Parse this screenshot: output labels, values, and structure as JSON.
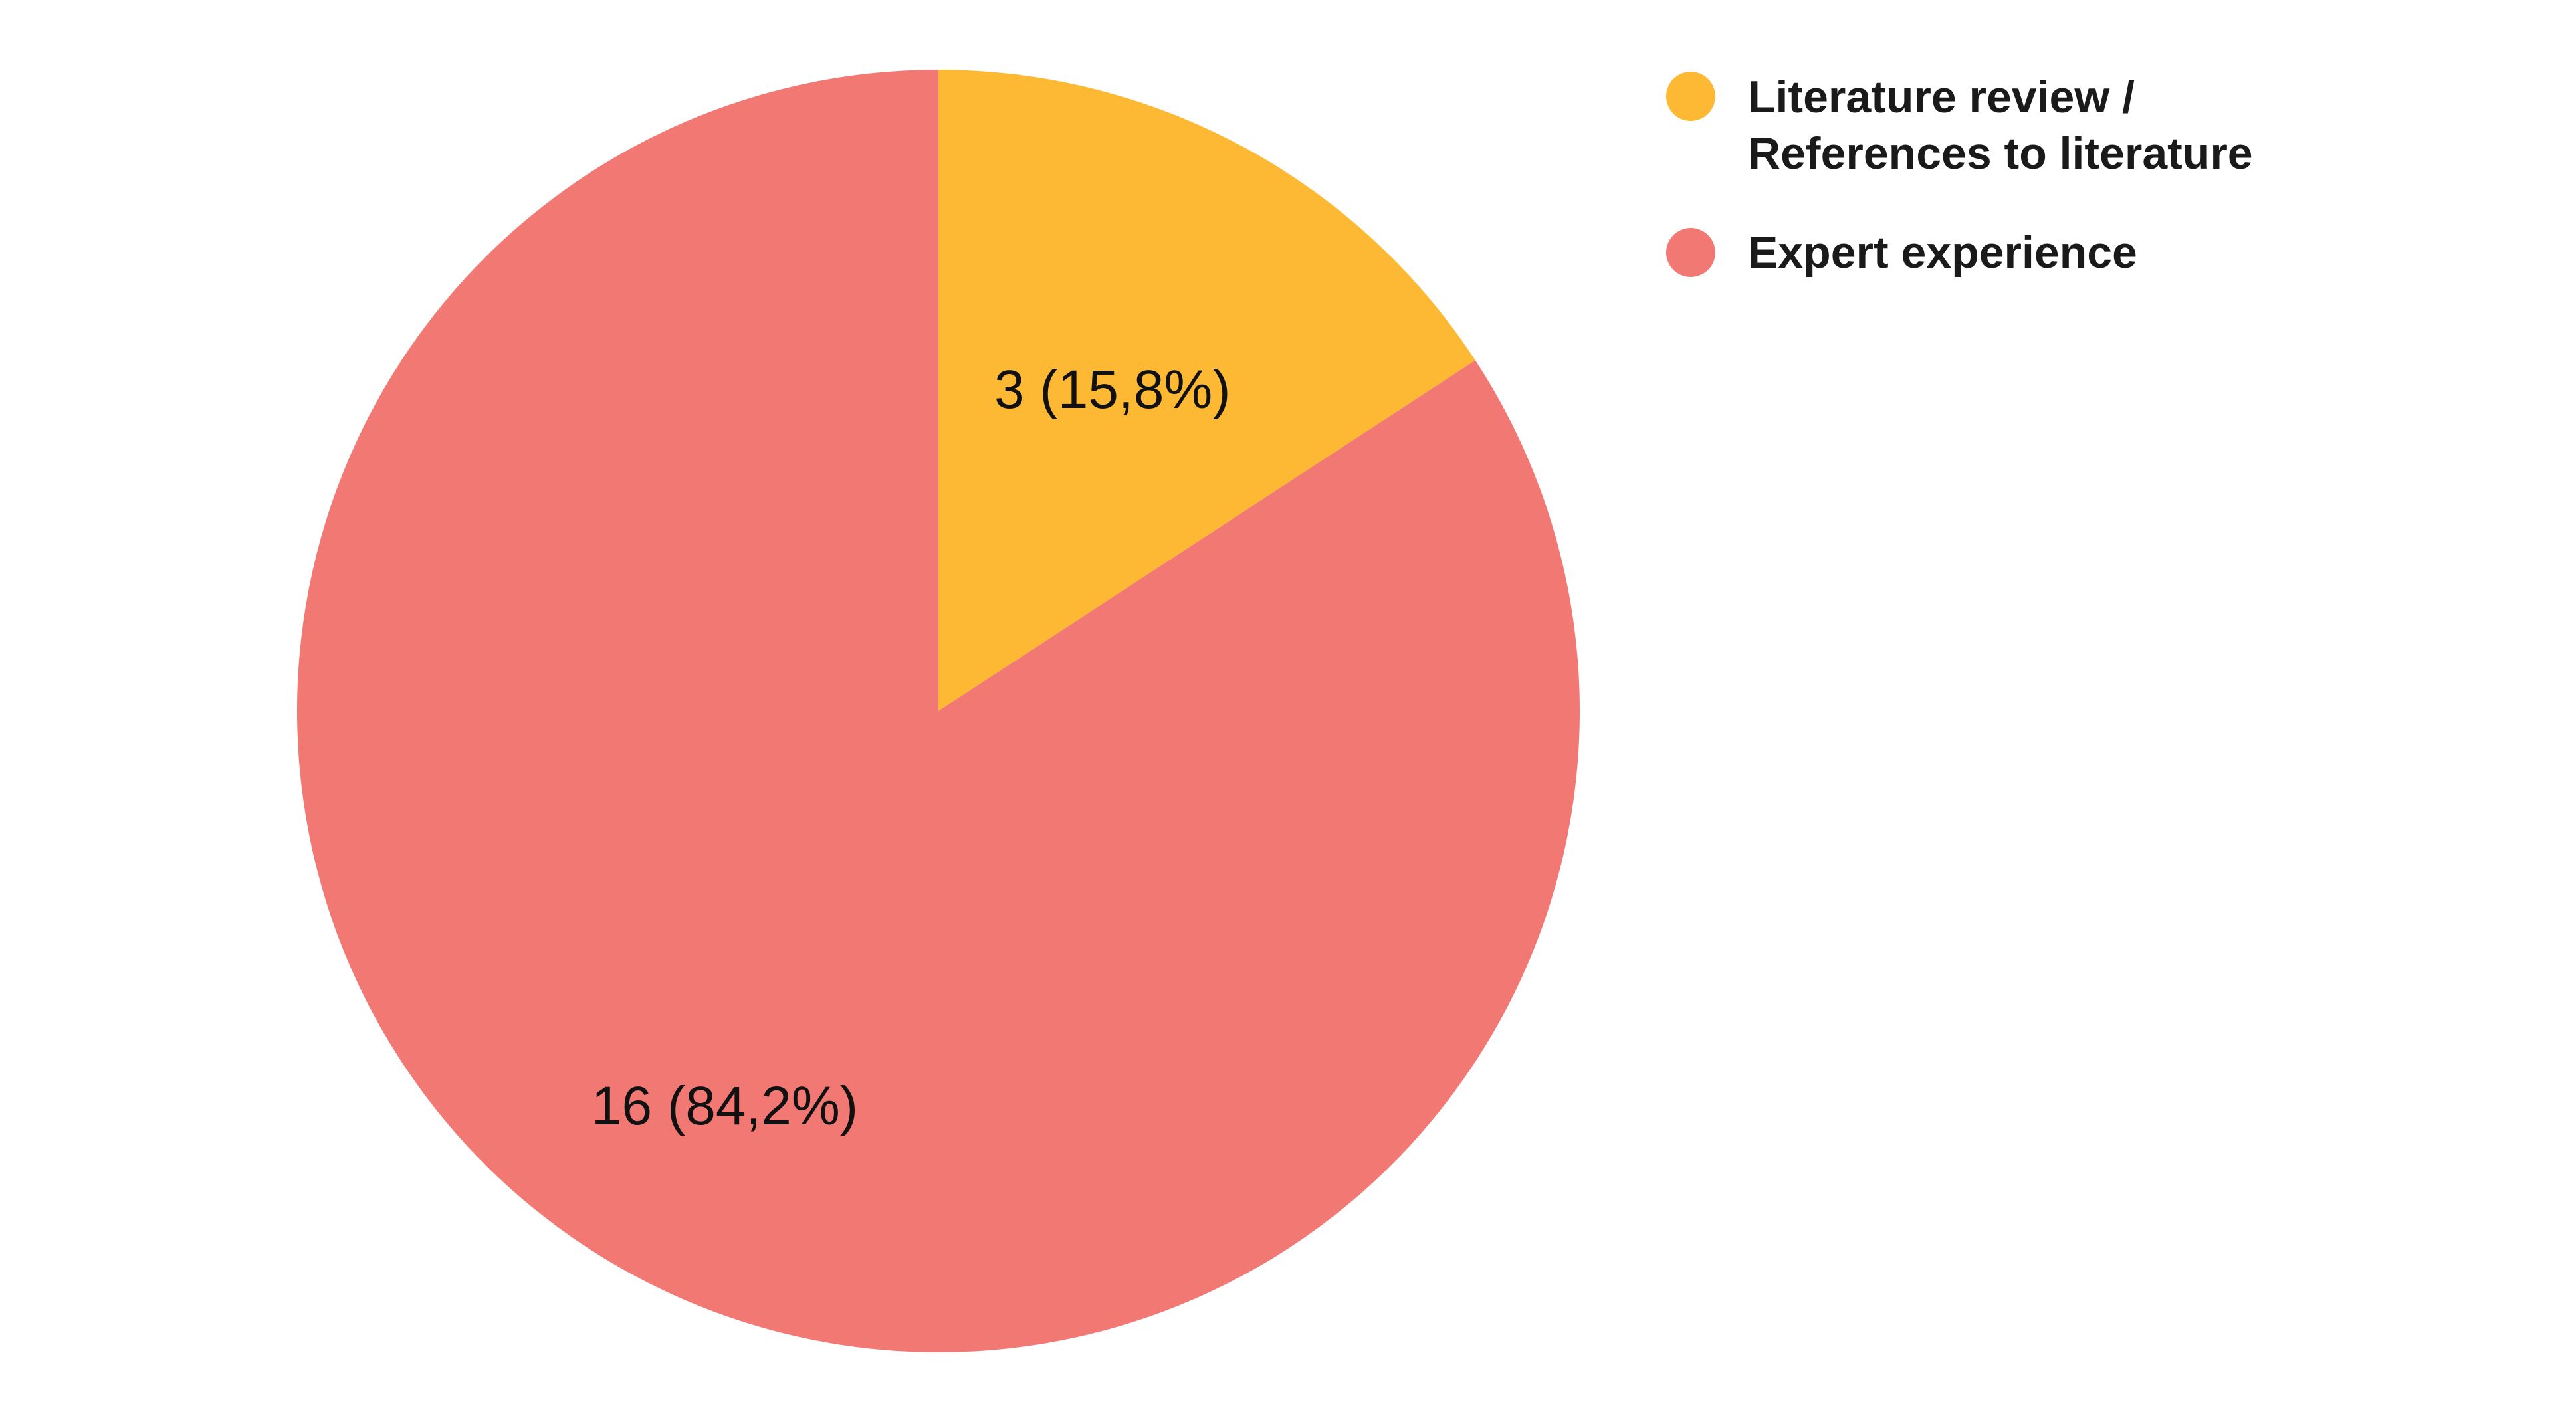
{
  "chart_data": {
    "type": "pie",
    "categories": [
      "Literature review / References to literature",
      "Expert experience"
    ],
    "values": [
      3,
      16
    ],
    "percent_labels": [
      "3 (15,8%)",
      "16 (84,2%)"
    ],
    "colors": [
      "#FDB934",
      "#F27874"
    ],
    "legend": {
      "placement": "top-right",
      "items": [
        {
          "lines": [
            "Literature review /",
            "References to literature"
          ],
          "color": "#FDB934"
        },
        {
          "lines": [
            "Expert experience"
          ],
          "color": "#F27874"
        }
      ]
    }
  }
}
